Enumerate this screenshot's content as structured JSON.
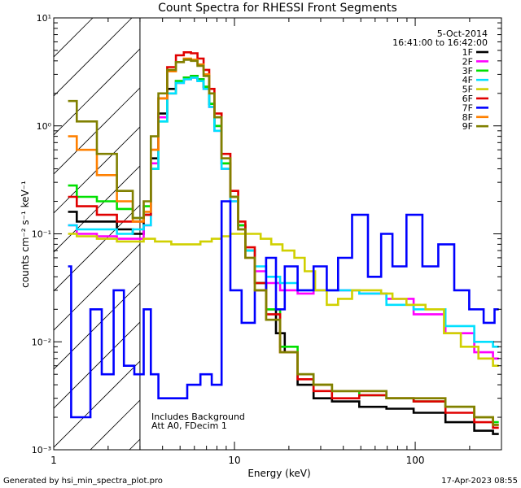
{
  "chart_data": {
    "type": "line",
    "title": "Count Spectra for RHESSI Front Segments",
    "xlabel": "Energy (keV)",
    "ylabel": "counts cm⁻² s⁻¹ keV⁻¹",
    "xscale": "log",
    "yscale": "log",
    "xlim": [
      1,
      300
    ],
    "ylim": [
      0.001,
      10
    ],
    "x_ticks": [
      {
        "value": 1,
        "label": "1"
      },
      {
        "value": 10,
        "label": "10"
      },
      {
        "value": 100,
        "label": "100"
      }
    ],
    "y_ticks": [
      {
        "value": 0.001,
        "label": "10⁻³"
      },
      {
        "value": 0.01,
        "label": "10⁻²"
      },
      {
        "value": 0.1,
        "label": "10⁻¹"
      },
      {
        "value": 1,
        "label": "10⁰"
      },
      {
        "value": 10,
        "label": "10¹"
      }
    ],
    "legend": {
      "placement": "top-right",
      "date": "5-Oct-2014",
      "time_range": "16:41:00 to 16:42:00"
    },
    "annotations": [
      "Includes Background",
      "Att A0, FDecim 1"
    ],
    "attenuated_region_max_keV": 3,
    "series": [
      {
        "name": "1F",
        "color": "#000000",
        "points": [
          [
            1.2,
            0.16
          ],
          [
            1.5,
            0.13
          ],
          [
            2,
            0.13
          ],
          [
            2.5,
            0.11
          ],
          [
            3,
            0.1
          ],
          [
            3.3,
            0.15
          ],
          [
            3.6,
            0.5
          ],
          [
            4,
            1.3
          ],
          [
            4.5,
            2.2
          ],
          [
            5,
            2.6
          ],
          [
            5.5,
            2.8
          ],
          [
            6,
            2.9
          ],
          [
            6.5,
            2.7
          ],
          [
            7,
            2.3
          ],
          [
            7.5,
            1.6
          ],
          [
            8,
            1.0
          ],
          [
            9,
            0.45
          ],
          [
            10,
            0.22
          ],
          [
            11,
            0.12
          ],
          [
            12,
            0.07
          ],
          [
            14,
            0.035
          ],
          [
            16,
            0.02
          ],
          [
            18,
            0.012
          ],
          [
            20,
            0.008
          ],
          [
            25,
            0.004
          ],
          [
            30,
            0.003
          ],
          [
            40,
            0.0028
          ],
          [
            60,
            0.0025
          ],
          [
            80,
            0.0024
          ],
          [
            120,
            0.0022
          ],
          [
            180,
            0.0018
          ],
          [
            250,
            0.0015
          ],
          [
            290,
            0.0014
          ]
        ]
      },
      {
        "name": "2F",
        "color": "#ff00ff",
        "points": [
          [
            1.2,
            0.12
          ],
          [
            1.5,
            0.1
          ],
          [
            2,
            0.095
          ],
          [
            2.5,
            0.09
          ],
          [
            3,
            0.09
          ],
          [
            3.3,
            0.12
          ],
          [
            3.6,
            0.45
          ],
          [
            4,
            1.2
          ],
          [
            4.5,
            2.0
          ],
          [
            5,
            2.5
          ],
          [
            5.5,
            2.7
          ],
          [
            6,
            2.8
          ],
          [
            6.5,
            2.6
          ],
          [
            7,
            2.2
          ],
          [
            7.5,
            1.5
          ],
          [
            8,
            0.9
          ],
          [
            9,
            0.4
          ],
          [
            10,
            0.2
          ],
          [
            11,
            0.11
          ],
          [
            12,
            0.07
          ],
          [
            14,
            0.045
          ],
          [
            16,
            0.035
          ],
          [
            20,
            0.03
          ],
          [
            25,
            0.028
          ],
          [
            30,
            0.03
          ],
          [
            40,
            0.03
          ],
          [
            60,
            0.028
          ],
          [
            80,
            0.025
          ],
          [
            120,
            0.018
          ],
          [
            180,
            0.012
          ],
          [
            250,
            0.008
          ],
          [
            290,
            0.007
          ]
        ]
      },
      {
        "name": "3F",
        "color": "#00e000",
        "points": [
          [
            1.2,
            0.28
          ],
          [
            1.5,
            0.22
          ],
          [
            2,
            0.2
          ],
          [
            2.5,
            0.17
          ],
          [
            3,
            0.14
          ],
          [
            3.3,
            0.18
          ],
          [
            3.6,
            0.4
          ],
          [
            4,
            1.1
          ],
          [
            4.5,
            2.0
          ],
          [
            5,
            2.6
          ],
          [
            5.5,
            2.8
          ],
          [
            6,
            2.9
          ],
          [
            6.5,
            2.7
          ],
          [
            7,
            2.3
          ],
          [
            7.5,
            1.6
          ],
          [
            8,
            1.0
          ],
          [
            9,
            0.45
          ],
          [
            10,
            0.22
          ],
          [
            11,
            0.12
          ],
          [
            12,
            0.07
          ],
          [
            14,
            0.035
          ],
          [
            16,
            0.02
          ],
          [
            20,
            0.009
          ],
          [
            25,
            0.005
          ],
          [
            30,
            0.004
          ],
          [
            40,
            0.0035
          ],
          [
            60,
            0.0032
          ],
          [
            80,
            0.003
          ],
          [
            120,
            0.0028
          ],
          [
            180,
            0.0025
          ],
          [
            250,
            0.002
          ],
          [
            290,
            0.0018
          ]
        ]
      },
      {
        "name": "4F",
        "color": "#00e0ff",
        "points": [
          [
            1.2,
            0.12
          ],
          [
            1.5,
            0.11
          ],
          [
            2,
            0.11
          ],
          [
            2.5,
            0.1
          ],
          [
            3,
            0.11
          ],
          [
            3.3,
            0.12
          ],
          [
            3.6,
            0.4
          ],
          [
            4,
            1.1
          ],
          [
            4.5,
            2.0
          ],
          [
            5,
            2.5
          ],
          [
            5.5,
            2.7
          ],
          [
            6,
            2.8
          ],
          [
            6.5,
            2.6
          ],
          [
            7,
            2.2
          ],
          [
            7.5,
            1.5
          ],
          [
            8,
            0.9
          ],
          [
            9,
            0.4
          ],
          [
            10,
            0.2
          ],
          [
            11,
            0.11
          ],
          [
            12,
            0.07
          ],
          [
            14,
            0.05
          ],
          [
            16,
            0.04
          ],
          [
            20,
            0.035
          ],
          [
            25,
            0.03
          ],
          [
            30,
            0.03
          ],
          [
            40,
            0.03
          ],
          [
            60,
            0.028
          ],
          [
            80,
            0.022
          ],
          [
            120,
            0.02
          ],
          [
            180,
            0.014
          ],
          [
            250,
            0.01
          ],
          [
            290,
            0.009
          ]
        ]
      },
      {
        "name": "5F",
        "color": "#d0d000",
        "points": [
          [
            1.2,
            0.1
          ],
          [
            1.5,
            0.095
          ],
          [
            2,
            0.09
          ],
          [
            2.5,
            0.085
          ],
          [
            3,
            0.085
          ],
          [
            3.3,
            0.09
          ],
          [
            4,
            0.085
          ],
          [
            5,
            0.08
          ],
          [
            6,
            0.08
          ],
          [
            7,
            0.085
          ],
          [
            8,
            0.09
          ],
          [
            9,
            0.095
          ],
          [
            10,
            0.1
          ],
          [
            11,
            0.1
          ],
          [
            12,
            0.1
          ],
          [
            13,
            0.1
          ],
          [
            15,
            0.09
          ],
          [
            17,
            0.08
          ],
          [
            20,
            0.07
          ],
          [
            23,
            0.06
          ],
          [
            26,
            0.045
          ],
          [
            30,
            0.03
          ],
          [
            35,
            0.022
          ],
          [
            40,
            0.025
          ],
          [
            50,
            0.03
          ],
          [
            60,
            0.03
          ],
          [
            70,
            0.028
          ],
          [
            80,
            0.025
          ],
          [
            100,
            0.022
          ],
          [
            130,
            0.02
          ],
          [
            160,
            0.012
          ],
          [
            200,
            0.009
          ],
          [
            250,
            0.007
          ],
          [
            290,
            0.006
          ]
        ]
      },
      {
        "name": "6F",
        "color": "#e00000",
        "points": [
          [
            1.2,
            0.22
          ],
          [
            1.5,
            0.18
          ],
          [
            2,
            0.15
          ],
          [
            2.5,
            0.13
          ],
          [
            3,
            0.13
          ],
          [
            3.3,
            0.15
          ],
          [
            3.6,
            0.6
          ],
          [
            4,
            1.8
          ],
          [
            4.5,
            3.5
          ],
          [
            5,
            4.5
          ],
          [
            5.5,
            4.8
          ],
          [
            6,
            4.7
          ],
          [
            6.5,
            4.2
          ],
          [
            7,
            3.3
          ],
          [
            7.5,
            2.2
          ],
          [
            8,
            1.3
          ],
          [
            9,
            0.55
          ],
          [
            10,
            0.25
          ],
          [
            11,
            0.13
          ],
          [
            12,
            0.075
          ],
          [
            14,
            0.035
          ],
          [
            16,
            0.018
          ],
          [
            20,
            0.008
          ],
          [
            25,
            0.0045
          ],
          [
            30,
            0.0035
          ],
          [
            40,
            0.003
          ],
          [
            60,
            0.0032
          ],
          [
            80,
            0.003
          ],
          [
            120,
            0.0028
          ],
          [
            180,
            0.0022
          ],
          [
            250,
            0.0018
          ],
          [
            290,
            0.0016
          ]
        ]
      },
      {
        "name": "7F",
        "color": "#0000ff",
        "points": [
          [
            1.2,
            0.05
          ],
          [
            1.3,
            0.002
          ],
          [
            1.5,
            0.002
          ],
          [
            1.7,
            0.02
          ],
          [
            2,
            0.005
          ],
          [
            2.3,
            0.03
          ],
          [
            2.6,
            0.006
          ],
          [
            3,
            0.005
          ],
          [
            3.3,
            0.02
          ],
          [
            3.6,
            0.005
          ],
          [
            4,
            0.003
          ],
          [
            5,
            0.003
          ],
          [
            6,
            0.004
          ],
          [
            7,
            0.005
          ],
          [
            8,
            0.004
          ],
          [
            9,
            0.2
          ],
          [
            10,
            0.03
          ],
          [
            12,
            0.015
          ],
          [
            14,
            0.03
          ],
          [
            16,
            0.06
          ],
          [
            18,
            0.02
          ],
          [
            20,
            0.05
          ],
          [
            25,
            0.03
          ],
          [
            30,
            0.05
          ],
          [
            35,
            0.03
          ],
          [
            40,
            0.06
          ],
          [
            50,
            0.15
          ],
          [
            60,
            0.04
          ],
          [
            70,
            0.1
          ],
          [
            80,
            0.05
          ],
          [
            100,
            0.15
          ],
          [
            120,
            0.05
          ],
          [
            150,
            0.08
          ],
          [
            180,
            0.03
          ],
          [
            220,
            0.02
          ],
          [
            260,
            0.015
          ],
          [
            290,
            0.02
          ]
        ]
      },
      {
        "name": "8F",
        "color": "#ff8000",
        "points": [
          [
            1.2,
            0.8
          ],
          [
            1.5,
            0.6
          ],
          [
            2,
            0.35
          ],
          [
            2.5,
            0.2
          ],
          [
            3,
            0.13
          ],
          [
            3.3,
            0.16
          ],
          [
            3.6,
            0.6
          ],
          [
            4,
            1.8
          ],
          [
            4.5,
            3.2
          ],
          [
            5,
            3.9
          ],
          [
            5.5,
            4.2
          ],
          [
            6,
            4.1
          ],
          [
            6.5,
            3.7
          ],
          [
            7,
            3.0
          ],
          [
            7.5,
            2.0
          ],
          [
            8,
            1.2
          ],
          [
            9,
            0.5
          ],
          [
            10,
            0.22
          ],
          [
            11,
            0.11
          ],
          [
            12,
            0.06
          ],
          [
            14,
            0.03
          ],
          [
            16,
            0.016
          ],
          [
            20,
            0.008
          ],
          [
            25,
            0.005
          ],
          [
            30,
            0.004
          ],
          [
            40,
            0.0035
          ],
          [
            60,
            0.0035
          ],
          [
            80,
            0.003
          ],
          [
            120,
            0.003
          ],
          [
            180,
            0.0025
          ],
          [
            250,
            0.002
          ],
          [
            290,
            0.0017
          ]
        ]
      },
      {
        "name": "9F",
        "color": "#808000",
        "points": [
          [
            1.2,
            1.7
          ],
          [
            1.5,
            1.1
          ],
          [
            2,
            0.55
          ],
          [
            2.5,
            0.25
          ],
          [
            3,
            0.14
          ],
          [
            3.3,
            0.2
          ],
          [
            3.6,
            0.8
          ],
          [
            4,
            2.0
          ],
          [
            4.5,
            3.3
          ],
          [
            5,
            3.9
          ],
          [
            5.5,
            4.1
          ],
          [
            6,
            4.0
          ],
          [
            6.5,
            3.6
          ],
          [
            7,
            2.9
          ],
          [
            7.5,
            2.0
          ],
          [
            8,
            1.2
          ],
          [
            9,
            0.5
          ],
          [
            10,
            0.22
          ],
          [
            11,
            0.11
          ],
          [
            12,
            0.06
          ],
          [
            14,
            0.03
          ],
          [
            16,
            0.016
          ],
          [
            20,
            0.008
          ],
          [
            25,
            0.005
          ],
          [
            30,
            0.004
          ],
          [
            40,
            0.0035
          ],
          [
            60,
            0.0035
          ],
          [
            80,
            0.003
          ],
          [
            120,
            0.003
          ],
          [
            180,
            0.0025
          ],
          [
            250,
            0.002
          ],
          [
            290,
            0.0017
          ]
        ]
      }
    ]
  },
  "footer": {
    "generated_by": "Generated by hsi_min_spectra_plot.pro",
    "timestamp": "17-Apr-2023 08:55"
  }
}
